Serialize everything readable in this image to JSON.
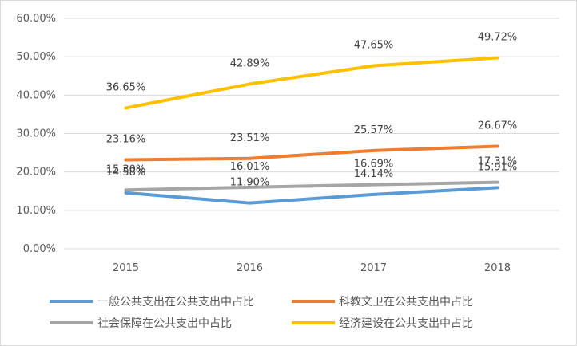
{
  "chart_data": {
    "type": "line",
    "title": "",
    "xlabel": "",
    "ylabel": "",
    "categories": [
      "2015",
      "2016",
      "2017",
      "2018"
    ],
    "ylim": [
      0,
      60
    ],
    "yticks": [
      "0.00%",
      "10.00%",
      "20.00%",
      "30.00%",
      "40.00%",
      "50.00%",
      "60.00%"
    ],
    "grid": true,
    "legend_position": "bottom",
    "series": [
      {
        "name": "一般公共支出在公共支出中占比",
        "color": "#5B9BD5",
        "values": [
          14.58,
          11.9,
          14.14,
          15.91
        ],
        "labels": [
          "14.58%",
          "11.90%",
          "14.14%",
          "15.91%"
        ]
      },
      {
        "name": "科教文卫在公共支出中占比",
        "color": "#ED7D31",
        "values": [
          23.16,
          23.51,
          25.57,
          26.67
        ],
        "labels": [
          "23.16%",
          "23.51%",
          "25.57%",
          "26.67%"
        ]
      },
      {
        "name": "社会保障在公共支出中占比",
        "color": "#A5A5A5",
        "values": [
          15.3,
          16.01,
          16.69,
          17.31
        ],
        "labels": [
          "15.30%",
          "16.01%",
          "16.69%",
          "17.31%"
        ]
      },
      {
        "name": "经济建设在公共支出中占比",
        "color": "#FFC000",
        "values": [
          36.65,
          42.89,
          47.65,
          49.72
        ],
        "labels": [
          "36.65%",
          "42.89%",
          "47.65%",
          "49.72%"
        ]
      }
    ]
  }
}
